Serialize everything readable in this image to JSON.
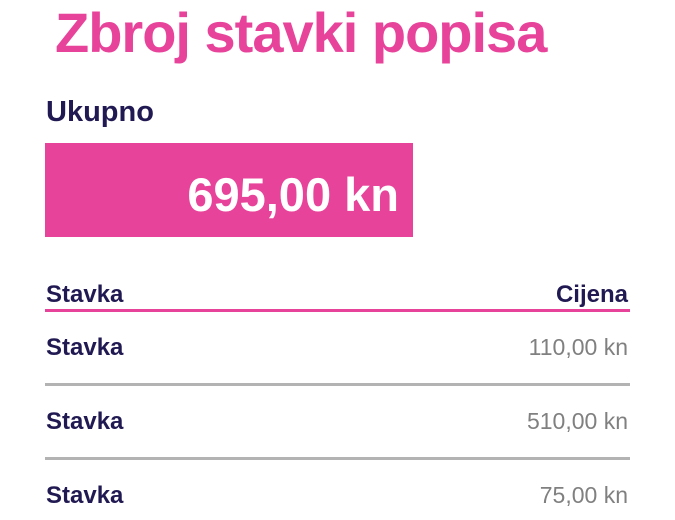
{
  "page": {
    "title": "Zbroj stavki popisa"
  },
  "total": {
    "label": "Ukupno",
    "value": "695,00 kn"
  },
  "table": {
    "headers": {
      "item": "Stavka",
      "price": "Cijena"
    },
    "rows": [
      {
        "item": "Stavka",
        "price": "110,00 kn"
      },
      {
        "item": "Stavka",
        "price": "510,00 kn"
      },
      {
        "item": "Stavka",
        "price": "75,00 kn"
      }
    ]
  },
  "colors": {
    "accent_pink": "#e8439a",
    "heading_navy": "#211a52",
    "price_gray": "#808080",
    "divider_gray": "#b3b3b3",
    "total_text": "#ffffff"
  }
}
